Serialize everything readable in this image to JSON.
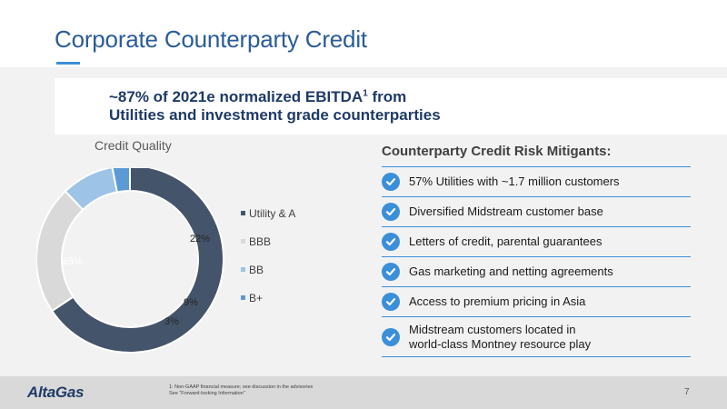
{
  "slide": {
    "title": "Corporate Counterparty Credit",
    "highlight_line1_pre": "~87% of 2021e normalized EBITDA",
    "highlight_sup": "1",
    "highlight_line1_post": " from",
    "highlight_line2": "Utilities and investment grade counterparties",
    "page_number": "7"
  },
  "colors": {
    "accent": "#3b8fd9",
    "title": "#2a5c9a",
    "navy": "#1f3a66"
  },
  "chart_data": {
    "type": "pie",
    "title": "Credit Quality",
    "donut": true,
    "categories": [
      "Utility & A",
      "BBB",
      "BB",
      "B+"
    ],
    "values": [
      65,
      22,
      9,
      3
    ],
    "labels": [
      "65%",
      "22%",
      "9%",
      "3%"
    ],
    "colors": [
      "#44546a",
      "#d9d9d9",
      "#9dc3e6",
      "#5b9bd5"
    ],
    "legend_position": "right"
  },
  "mitigants": {
    "title": "Counterparty Credit Risk Mitigants:",
    "items": [
      {
        "icon": "check-circle-icon",
        "line1": "57% Utilities with ~1.7 million customers",
        "line2": ""
      },
      {
        "icon": "check-circle-icon",
        "line1": "Diversified Midstream customer base",
        "line2": ""
      },
      {
        "icon": "check-circle-icon",
        "line1": "Letters of credit, parental guarantees",
        "line2": ""
      },
      {
        "icon": "check-circle-icon",
        "line1": "Gas marketing and netting agreements",
        "line2": ""
      },
      {
        "icon": "check-circle-icon",
        "line1": "Access to premium pricing in Asia",
        "line2": ""
      },
      {
        "icon": "check-circle-icon",
        "line1": "Midstream customers located in",
        "line2": "world-class Montney resource play"
      }
    ]
  },
  "footer": {
    "logo": "AltaGas",
    "footnote_line1": "1: Non-GAAP financial measure; see discussion in the advisories",
    "footnote_line2": "See \"Forward-looking Information\""
  }
}
